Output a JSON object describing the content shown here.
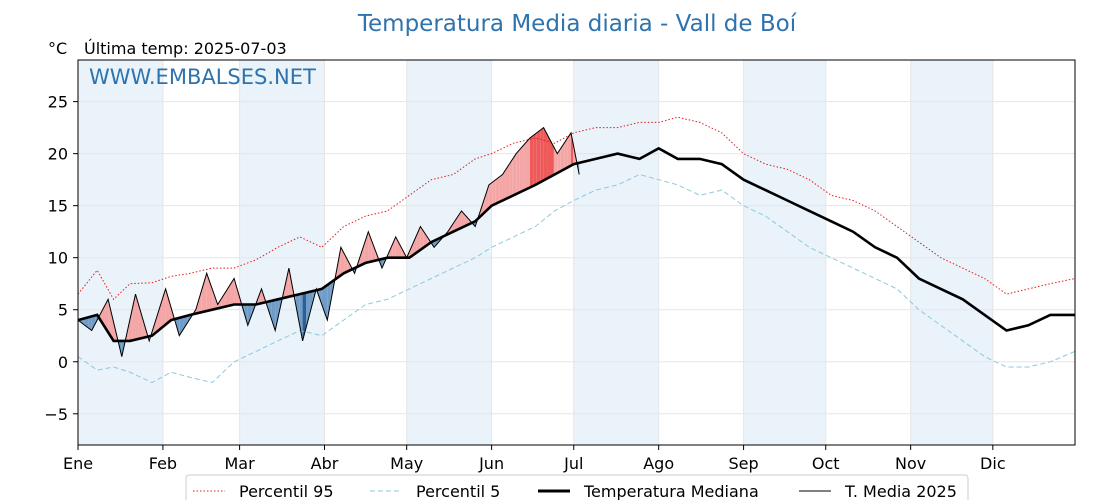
{
  "header": {
    "title": "Temperatura Media diaria - Vall de Boí",
    "unit_label": "°C",
    "last_temp_label": "Última temp: 2025-07-03",
    "watermark": "WWW.EMBALSES.NET"
  },
  "colors": {
    "p95": "#e41a1c",
    "p5": "#8ec9dd",
    "median": "#000000",
    "current": "#000000",
    "above_fill": "#f4a6a6",
    "above_strong": "#ee5a5a",
    "below_fill": "#6f9dc8",
    "below_strong": "#2e5f94",
    "month_band": "#eaf2fa",
    "grid": "#e6e6e6",
    "title": "#2e73ad"
  },
  "chart_data": {
    "type": "line",
    "title": "Temperatura Media diaria - Vall de Boí",
    "ylabel": "°C",
    "ylim": [
      -8,
      29
    ],
    "xlim": [
      1,
      365
    ],
    "yticks": [
      -5,
      0,
      5,
      10,
      15,
      20,
      25
    ],
    "months": [
      {
        "label": "Ene",
        "day": 1
      },
      {
        "label": "Feb",
        "day": 32
      },
      {
        "label": "Mar",
        "day": 60
      },
      {
        "label": "Abr",
        "day": 91
      },
      {
        "label": "May",
        "day": 121
      },
      {
        "label": "Jun",
        "day": 152
      },
      {
        "label": "Jul",
        "day": 182
      },
      {
        "label": "Ago",
        "day": 213
      },
      {
        "label": "Sep",
        "day": 244
      },
      {
        "label": "Oct",
        "day": 274
      },
      {
        "label": "Nov",
        "day": 305
      },
      {
        "label": "Dic",
        "day": 335
      }
    ],
    "grid": true,
    "legend_position": "bottom-center",
    "series": [
      {
        "name": "Percentil 95",
        "style": "dotted-red",
        "x": [
          1,
          8,
          14,
          20,
          28,
          35,
          42,
          50,
          58,
          66,
          74,
          82,
          90,
          98,
          106,
          114,
          122,
          130,
          138,
          146,
          152,
          160,
          168,
          175,
          182,
          190,
          198,
          206,
          213,
          220,
          228,
          236,
          244,
          252,
          260,
          268,
          276,
          284,
          292,
          300,
          308,
          316,
          324,
          332,
          340,
          348,
          356,
          365
        ],
        "y": [
          6.5,
          8.8,
          6.0,
          7.5,
          7.6,
          8.2,
          8.5,
          9.0,
          9.0,
          9.8,
          11.0,
          12.0,
          11.0,
          13.0,
          14.0,
          14.5,
          16.0,
          17.5,
          18.0,
          19.5,
          20.0,
          21.0,
          21.5,
          21.0,
          22.0,
          22.5,
          22.5,
          23.0,
          23.0,
          23.5,
          23.0,
          22.0,
          20.0,
          19.0,
          18.5,
          17.5,
          16.0,
          15.5,
          14.5,
          13.0,
          11.5,
          10.0,
          9.0,
          8.0,
          6.5,
          7.0,
          7.5,
          8.0
        ]
      },
      {
        "name": "Percentil 5",
        "style": "dashed-lightblue",
        "x": [
          1,
          8,
          14,
          20,
          28,
          35,
          42,
          50,
          58,
          66,
          74,
          82,
          90,
          98,
          106,
          114,
          122,
          130,
          138,
          146,
          152,
          160,
          168,
          175,
          182,
          190,
          198,
          206,
          213,
          220,
          228,
          236,
          244,
          252,
          260,
          268,
          276,
          284,
          292,
          300,
          308,
          316,
          324,
          332,
          340,
          348,
          356,
          365
        ],
        "y": [
          0.5,
          -0.8,
          -0.5,
          -1.0,
          -2.0,
          -1.0,
          -1.5,
          -2.0,
          0.0,
          1.0,
          2.0,
          3.0,
          2.5,
          4.0,
          5.5,
          6.0,
          7.0,
          8.0,
          9.0,
          10.0,
          11.0,
          12.0,
          13.0,
          14.5,
          15.5,
          16.5,
          17.0,
          18.0,
          17.5,
          17.0,
          16.0,
          16.5,
          15.0,
          14.0,
          12.5,
          11.0,
          10.0,
          9.0,
          8.0,
          7.0,
          5.0,
          3.5,
          2.0,
          0.5,
          -0.5,
          -0.5,
          0.0,
          1.0
        ]
      },
      {
        "name": "Temperatura Mediana",
        "style": "thick-black",
        "x": [
          1,
          8,
          14,
          20,
          28,
          35,
          42,
          50,
          58,
          66,
          74,
          82,
          90,
          98,
          106,
          114,
          122,
          130,
          138,
          146,
          152,
          160,
          168,
          175,
          182,
          190,
          198,
          206,
          213,
          220,
          228,
          236,
          244,
          252,
          260,
          268,
          276,
          284,
          292,
          300,
          308,
          316,
          324,
          332,
          340,
          348,
          356,
          365
        ],
        "y": [
          4.0,
          4.5,
          2.0,
          2.0,
          2.5,
          4.0,
          4.5,
          5.0,
          5.5,
          5.5,
          6.0,
          6.5,
          7.0,
          8.5,
          9.5,
          10.0,
          10.0,
          11.5,
          12.5,
          13.5,
          15.0,
          16.0,
          17.0,
          18.0,
          19.0,
          19.5,
          20.0,
          19.5,
          20.5,
          19.5,
          19.5,
          19.0,
          17.5,
          16.5,
          15.5,
          14.5,
          13.5,
          12.5,
          11.0,
          10.0,
          8.0,
          7.0,
          6.0,
          4.5,
          3.0,
          3.5,
          4.5,
          4.5
        ]
      },
      {
        "name": "T. Media 2025",
        "style": "thin-black",
        "x": [
          1,
          6,
          12,
          17,
          22,
          27,
          33,
          38,
          44,
          48,
          52,
          58,
          63,
          68,
          73,
          78,
          83,
          88,
          92,
          97,
          102,
          107,
          112,
          117,
          121,
          126,
          131,
          136,
          141,
          146,
          151,
          156,
          161,
          166,
          171,
          176,
          181,
          184
        ],
        "y": [
          4.0,
          3.0,
          6.0,
          0.5,
          6.5,
          2.0,
          7.0,
          2.5,
          5.0,
          8.5,
          5.5,
          8.0,
          3.5,
          7.0,
          3.0,
          9.0,
          2.0,
          7.0,
          4.0,
          11.0,
          8.5,
          12.5,
          9.0,
          12.0,
          10.0,
          13.0,
          11.0,
          12.5,
          14.5,
          13.0,
          17.0,
          18.0,
          20.0,
          21.5,
          22.5,
          20.0,
          22.0,
          18.0
        ]
      }
    ]
  }
}
